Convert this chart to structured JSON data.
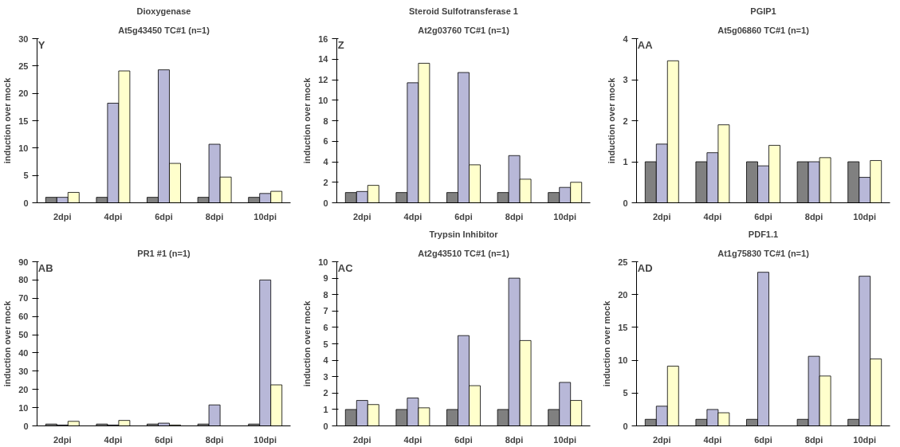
{
  "chart_data": [
    {
      "type": "bar",
      "title": "Dioxygenase",
      "subtitle": "At5g43450 TC#1 (n=1)",
      "ylabel": "induction over mock",
      "annotations": [
        "Y"
      ],
      "categories": [
        "2dpi",
        "4dpi",
        "6dpi",
        "8dpi",
        "10dpi"
      ],
      "ylim": [
        0,
        30
      ],
      "yticks": [
        0,
        5,
        10,
        15,
        20,
        25,
        30
      ],
      "series": [
        {
          "color": "#808080",
          "values": [
            1,
            1,
            1,
            1,
            1
          ]
        },
        {
          "color": "#b8b8d8",
          "values": [
            1,
            18.2,
            24.3,
            10.7,
            1.7
          ]
        },
        {
          "color": "#ffffcc",
          "values": [
            1.9,
            24.1,
            7.2,
            4.7,
            2.1
          ]
        }
      ]
    },
    {
      "type": "bar",
      "title": "Steroid Sulfotransferase 1",
      "subtitle": "At2g03760 TC#1 (n=1)",
      "ylabel": "induction over mock",
      "annotations": [
        "Z"
      ],
      "categories": [
        "2dpi",
        "4dpi",
        "6dpi",
        "8dpi",
        "10dpi"
      ],
      "ylim": [
        0,
        16
      ],
      "yticks": [
        0,
        2,
        4,
        6,
        8,
        10,
        12,
        14,
        16
      ],
      "series": [
        {
          "color": "#808080",
          "values": [
            1,
            1,
            1,
            1,
            1
          ]
        },
        {
          "color": "#b8b8d8",
          "values": [
            1.1,
            11.7,
            12.7,
            4.6,
            1.5
          ]
        },
        {
          "color": "#ffffcc",
          "values": [
            1.7,
            13.6,
            3.7,
            2.3,
            2.0
          ]
        }
      ]
    },
    {
      "type": "bar",
      "title": "PGIP1",
      "subtitle": "At5g06860 TC#1 (n=1)",
      "ylabel": "induction over mock",
      "annotations": [
        "AA"
      ],
      "categories": [
        "2dpi",
        "4dpi",
        "6dpi",
        "8dpi",
        "10dpi"
      ],
      "ylim": [
        0,
        4
      ],
      "yticks": [
        0,
        1,
        2,
        3,
        4
      ],
      "series": [
        {
          "color": "#808080",
          "values": [
            1,
            1,
            1,
            1,
            1
          ]
        },
        {
          "color": "#b8b8d8",
          "values": [
            1.43,
            1.22,
            0.9,
            1.0,
            0.62
          ]
        },
        {
          "color": "#ffffcc",
          "values": [
            3.46,
            1.9,
            1.4,
            1.1,
            1.03
          ]
        }
      ]
    },
    {
      "type": "bar",
      "title": "PR1 #1 (n=1)",
      "ylabel": "induction over mock",
      "annotations": [
        "AB"
      ],
      "categories": [
        "2dpi",
        "4dpi",
        "6dpi",
        "8dpi",
        "10dpi"
      ],
      "ylim": [
        0,
        90
      ],
      "yticks": [
        0,
        10,
        20,
        30,
        40,
        50,
        60,
        70,
        80,
        90
      ],
      "series": [
        {
          "color": "#808080",
          "values": [
            1,
            1,
            1,
            1,
            1
          ]
        },
        {
          "color": "#b8b8d8",
          "values": [
            0.5,
            0.5,
            1.5,
            11.5,
            80
          ]
        },
        {
          "color": "#ffffcc",
          "values": [
            2.5,
            3.0,
            0.5,
            null,
            22.5
          ]
        }
      ]
    },
    {
      "type": "bar",
      "title": "Trypsin Inhibitor",
      "subtitle": "At2g43510 TC#1 (n=1)",
      "ylabel": "induction over mock",
      "annotations": [
        "AC"
      ],
      "categories": [
        "2dpi",
        "4dpi",
        "6dpi",
        "8dpi",
        "10dpi"
      ],
      "ylim": [
        0,
        10
      ],
      "yticks": [
        0,
        1,
        2,
        3,
        4,
        5,
        6,
        7,
        8,
        9,
        10
      ],
      "series": [
        {
          "color": "#808080",
          "values": [
            1,
            1,
            1,
            1,
            1
          ]
        },
        {
          "color": "#b8b8d8",
          "values": [
            1.55,
            1.7,
            5.5,
            9.0,
            2.65
          ]
        },
        {
          "color": "#ffffcc",
          "values": [
            1.3,
            1.1,
            2.45,
            5.2,
            1.55
          ]
        }
      ]
    },
    {
      "type": "bar",
      "title": "PDF1.1",
      "subtitle": "At1g75830 TC#1 (n=1)",
      "ylabel": "induction over mock",
      "annotations": [
        "AD"
      ],
      "categories": [
        "2dpi",
        "4dpi",
        "6dpi",
        "8dpi",
        "10dpi"
      ],
      "ylim": [
        0,
        25
      ],
      "yticks": [
        0,
        5,
        10,
        15,
        20,
        25
      ],
      "series": [
        {
          "color": "#808080",
          "values": [
            1,
            1,
            1,
            1,
            1
          ]
        },
        {
          "color": "#b8b8d8",
          "values": [
            3.0,
            2.5,
            23.4,
            10.6,
            22.8
          ]
        },
        {
          "color": "#ffffcc",
          "values": [
            9.1,
            2.0,
            null,
            7.6,
            10.2
          ]
        }
      ]
    }
  ]
}
